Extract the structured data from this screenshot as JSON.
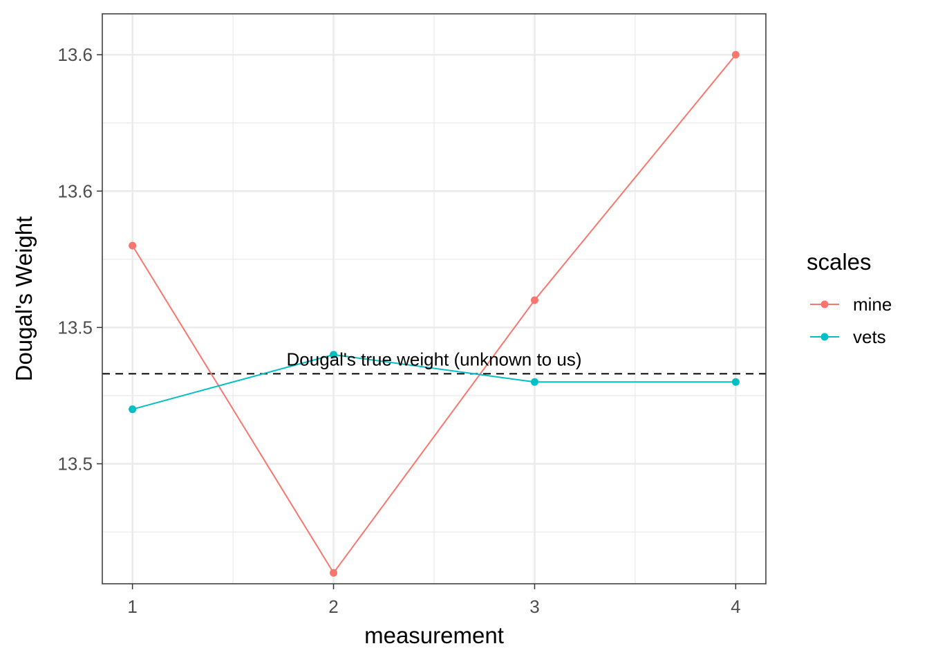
{
  "chart_data": {
    "type": "line",
    "xlabel": "measurement",
    "ylabel": "Dougal's Weight",
    "x": [
      1,
      2,
      3,
      4
    ],
    "x_tick_labels": [
      "1",
      "2",
      "3",
      "4"
    ],
    "xlim": [
      0.85,
      4.15
    ],
    "ylim": [
      13.406,
      13.615
    ],
    "y_ticks": [
      13.45,
      13.5,
      13.55,
      13.6
    ],
    "y_tick_labels": [
      "13.5",
      "13.5",
      "13.6",
      "13.6"
    ],
    "grid": true,
    "legend": {
      "title": "scales",
      "position": "right"
    },
    "series": [
      {
        "name": "mine",
        "color": "#F8766D",
        "values": [
          13.53,
          13.41,
          13.51,
          13.6
        ]
      },
      {
        "name": "vets",
        "color": "#00BFC4",
        "values": [
          13.47,
          13.49,
          13.48,
          13.48
        ]
      }
    ],
    "reference_line": {
      "value": 13.483,
      "style": "dashed",
      "color": "#000000",
      "label": "Dougal's true weight (unknown to us)"
    }
  }
}
